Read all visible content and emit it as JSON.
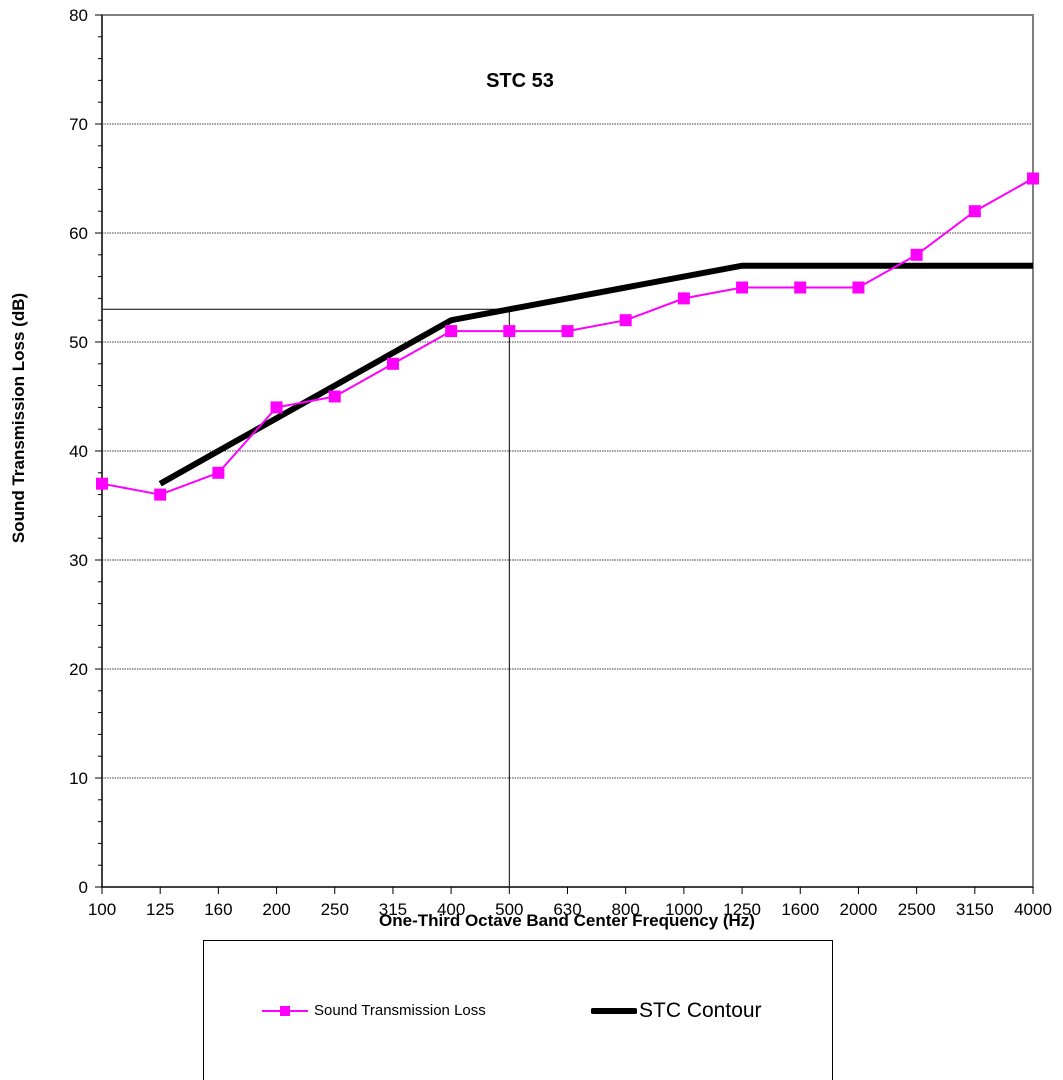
{
  "chart_data": {
    "type": "line",
    "annotation": "STC  53",
    "xlabel": "One-Third Octave Band Center Frequency (Hz)",
    "ylabel": "Sound Transmission Loss (dB)",
    "categories": [
      "100",
      "125",
      "160",
      "200",
      "250",
      "315",
      "400",
      "500",
      "630",
      "800",
      "1000",
      "1250",
      "1600",
      "2000",
      "2500",
      "3150",
      "4000"
    ],
    "ylim": [
      0,
      80
    ],
    "yticks": [
      0,
      10,
      20,
      30,
      40,
      50,
      60,
      70,
      80
    ],
    "grid": true,
    "reference_value": 53,
    "reference_category": "500",
    "series": [
      {
        "name": "Sound Transmission Loss",
        "color": "#ff00ff",
        "marker": "square",
        "x": [
          "100",
          "125",
          "160",
          "200",
          "250",
          "315",
          "400",
          "500",
          "630",
          "800",
          "1000",
          "1250",
          "1600",
          "2000",
          "2500",
          "3150",
          "4000"
        ],
        "values": [
          37,
          36,
          38,
          44,
          45,
          48,
          51,
          51,
          51,
          52,
          54,
          55,
          55,
          55,
          58,
          62,
          65
        ]
      },
      {
        "name": "STC Contour",
        "color": "#000000",
        "marker": "none",
        "x": [
          "125",
          "160",
          "200",
          "250",
          "315",
          "400",
          "500",
          "630",
          "800",
          "1000",
          "1250",
          "1600",
          "2000",
          "2500",
          "3150",
          "4000"
        ],
        "values": [
          37,
          40,
          43,
          46,
          49,
          52,
          53,
          54,
          55,
          56,
          57,
          57,
          57,
          57,
          57,
          57
        ]
      }
    ],
    "legend_position": "bottom"
  }
}
